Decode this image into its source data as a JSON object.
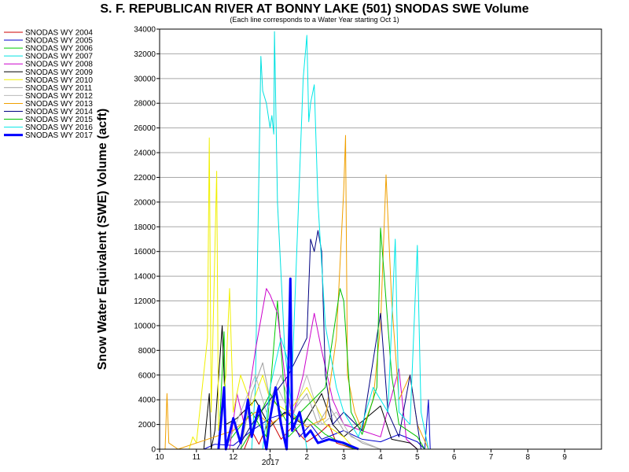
{
  "chart_data": {
    "type": "line",
    "title": "S. F. REPUBLICAN RIVER AT BONNY LAKE (501) SNODAS SWE Volume",
    "subtitle": "(Each line corresponds to a Water Year starting Oct 1)",
    "ylabel": "Snow Water Equivalent (SWE) Volume (acft)",
    "xlabel": "",
    "year_label": "2017",
    "ylim": [
      0,
      34000
    ],
    "yticks": [
      "0",
      "2000",
      "4000",
      "6000",
      "8000",
      "10000",
      "12000",
      "14000",
      "16000",
      "18000",
      "20000",
      "22000",
      "24000",
      "26000",
      "28000",
      "30000",
      "32000",
      "34000"
    ],
    "xlim": [
      0,
      12
    ],
    "xticks": [
      {
        "label": "10",
        "x": 0
      },
      {
        "label": "11",
        "x": 1
      },
      {
        "label": "12",
        "x": 2
      },
      {
        "label": "1",
        "x": 3
      },
      {
        "label": "2",
        "x": 4
      },
      {
        "label": "3",
        "x": 5
      },
      {
        "label": "4",
        "x": 6
      },
      {
        "label": "5",
        "x": 7
      },
      {
        "label": "6",
        "x": 8
      },
      {
        "label": "7",
        "x": 9
      },
      {
        "label": "8",
        "x": 10
      },
      {
        "label": "9",
        "x": 11
      }
    ],
    "grid": true,
    "legend_position": "left",
    "series": [
      {
        "name": "SNODAS WY 2004",
        "color": "#cc0000",
        "width": 1,
        "points": [
          [
            2.3,
            0
          ],
          [
            2.5,
            1500
          ],
          [
            2.7,
            400
          ],
          [
            3.0,
            2500
          ],
          [
            3.3,
            800
          ],
          [
            3.6,
            1800
          ],
          [
            4.0,
            600
          ],
          [
            4.3,
            1200
          ],
          [
            4.6,
            2000
          ],
          [
            4.8,
            500
          ],
          [
            5.0,
            300
          ],
          [
            5.3,
            0
          ]
        ]
      },
      {
        "name": "SNODAS WY 2005",
        "color": "#0000cc",
        "width": 1,
        "points": [
          [
            1.2,
            0
          ],
          [
            1.5,
            400
          ],
          [
            2.0,
            300
          ],
          [
            2.5,
            1500
          ],
          [
            3.0,
            2500
          ],
          [
            3.5,
            3000
          ],
          [
            3.8,
            1000
          ],
          [
            4.1,
            2000
          ],
          [
            4.4,
            800
          ],
          [
            5.0,
            1500
          ],
          [
            5.5,
            800
          ],
          [
            6.0,
            600
          ],
          [
            6.5,
            1200
          ],
          [
            7.0,
            600
          ],
          [
            7.2,
            0
          ],
          [
            7.3,
            4000
          ],
          [
            7.35,
            0
          ]
        ]
      },
      {
        "name": "SNODAS WY 2006",
        "color": "#00cc00",
        "width": 1,
        "points": [
          [
            1.6,
            0
          ],
          [
            1.75,
            9500
          ],
          [
            1.8,
            300
          ],
          [
            2.1,
            1500
          ],
          [
            2.5,
            3000
          ],
          [
            2.9,
            1000
          ],
          [
            3.2,
            12000
          ],
          [
            3.35,
            6000
          ],
          [
            3.5,
            1000
          ],
          [
            4.0,
            2500
          ],
          [
            4.5,
            1200
          ],
          [
            5.0,
            400
          ],
          [
            5.3,
            0
          ]
        ]
      },
      {
        "name": "SNODAS WY 2007",
        "color": "#00e0e0",
        "width": 1,
        "points": [
          [
            2.5,
            0
          ],
          [
            2.6,
            5000
          ],
          [
            2.75,
            31800
          ],
          [
            2.8,
            29000
          ],
          [
            2.9,
            28000
          ],
          [
            3.0,
            26000
          ],
          [
            3.05,
            27000
          ],
          [
            3.1,
            25500
          ],
          [
            3.12,
            33800
          ],
          [
            3.2,
            20000
          ],
          [
            3.4,
            8000
          ],
          [
            3.6,
            3000
          ],
          [
            3.9,
            2000
          ],
          [
            4.0,
            0
          ]
        ]
      },
      {
        "name": "SNODAS WY 2008",
        "color": "#cc00cc",
        "width": 1,
        "points": [
          [
            1.9,
            0
          ],
          [
            2.1,
            4500
          ],
          [
            2.3,
            2000
          ],
          [
            2.6,
            8000
          ],
          [
            2.9,
            13000
          ],
          [
            3.0,
            12500
          ],
          [
            3.2,
            11000
          ],
          [
            3.4,
            6000
          ],
          [
            3.6,
            2500
          ],
          [
            3.9,
            6000
          ],
          [
            4.2,
            11000
          ],
          [
            4.4,
            8000
          ],
          [
            4.7,
            4000
          ],
          [
            5.0,
            2000
          ],
          [
            6.0,
            1000
          ],
          [
            6.5,
            6500
          ],
          [
            6.7,
            800
          ],
          [
            7.0,
            0
          ]
        ]
      },
      {
        "name": "SNODAS WY 2009",
        "color": "#000000",
        "width": 1,
        "points": [
          [
            1.2,
            0
          ],
          [
            1.35,
            4500
          ],
          [
            1.4,
            0
          ],
          [
            1.5,
            1500
          ],
          [
            1.7,
            10000
          ],
          [
            1.8,
            2000
          ],
          [
            2.1,
            2500
          ],
          [
            2.6,
            4000
          ],
          [
            3.0,
            1800
          ],
          [
            3.4,
            3000
          ],
          [
            3.9,
            2000
          ],
          [
            4.4,
            4500
          ],
          [
            4.7,
            2000
          ],
          [
            5.0,
            1000
          ],
          [
            6.0,
            3500
          ],
          [
            6.3,
            800
          ],
          [
            6.8,
            500
          ],
          [
            7.0,
            0
          ]
        ]
      },
      {
        "name": "SNODAS WY 2010",
        "color": "#f0f000",
        "width": 1,
        "points": [
          [
            0.8,
            0
          ],
          [
            0.9,
            1000
          ],
          [
            1.0,
            500
          ],
          [
            1.3,
            9000
          ],
          [
            1.35,
            25200
          ],
          [
            1.4,
            3000
          ],
          [
            1.55,
            22500
          ],
          [
            1.6,
            1500
          ],
          [
            1.8,
            6000
          ],
          [
            1.9,
            13000
          ],
          [
            2.0,
            3000
          ],
          [
            2.2,
            6000
          ],
          [
            2.5,
            3500
          ],
          [
            2.8,
            6000
          ],
          [
            3.0,
            4000
          ],
          [
            3.5,
            3000
          ],
          [
            4.0,
            5000
          ],
          [
            4.5,
            2000
          ],
          [
            5.0,
            1000
          ],
          [
            5.3,
            0
          ]
        ]
      },
      {
        "name": "SNODAS WY 2011",
        "color": "#a0a0a0",
        "width": 1,
        "points": [
          [
            2.2,
            0
          ],
          [
            2.5,
            4500
          ],
          [
            2.8,
            7000
          ],
          [
            3.0,
            4000
          ],
          [
            3.3,
            6000
          ],
          [
            3.6,
            3000
          ],
          [
            4.0,
            4500
          ],
          [
            4.3,
            2000
          ],
          [
            4.6,
            3500
          ],
          [
            5.0,
            1500
          ],
          [
            5.5,
            500
          ],
          [
            6.0,
            0
          ]
        ]
      },
      {
        "name": "SNODAS WY 2012",
        "color": "#b8b8b8",
        "width": 1,
        "points": [
          [
            1.8,
            0
          ],
          [
            2.2,
            3000
          ],
          [
            2.6,
            6000
          ],
          [
            2.9,
            3000
          ],
          [
            3.2,
            5000
          ],
          [
            3.6,
            2500
          ],
          [
            4.0,
            6000
          ],
          [
            4.4,
            2000
          ],
          [
            4.8,
            3000
          ],
          [
            5.2,
            1000
          ],
          [
            5.6,
            500
          ],
          [
            6.0,
            0
          ]
        ]
      },
      {
        "name": "SNODAS WY 2013",
        "color": "#f0a000",
        "width": 1,
        "points": [
          [
            0.15,
            0
          ],
          [
            0.2,
            4500
          ],
          [
            0.25,
            500
          ],
          [
            0.5,
            0
          ],
          [
            2.0,
            1500
          ],
          [
            2.6,
            3000
          ],
          [
            3.0,
            2000
          ],
          [
            3.5,
            3000
          ],
          [
            4.0,
            1800
          ],
          [
            4.5,
            2500
          ],
          [
            4.8,
            9000
          ],
          [
            5.0,
            21000
          ],
          [
            5.05,
            25400
          ],
          [
            5.1,
            6000
          ],
          [
            5.3,
            3000
          ],
          [
            5.5,
            1500
          ],
          [
            5.8,
            4000
          ],
          [
            6.0,
            10000
          ],
          [
            6.15,
            22200
          ],
          [
            6.3,
            12000
          ],
          [
            6.5,
            4000
          ],
          [
            6.8,
            6000
          ],
          [
            7.0,
            2000
          ],
          [
            7.3,
            0
          ]
        ]
      },
      {
        "name": "SNODAS WY 2014",
        "color": "#000080",
        "width": 1,
        "points": [
          [
            2.1,
            0
          ],
          [
            2.5,
            2000
          ],
          [
            3.0,
            4000
          ],
          [
            3.5,
            6000
          ],
          [
            4.0,
            9000
          ],
          [
            4.1,
            17000
          ],
          [
            4.2,
            16000
          ],
          [
            4.3,
            17700
          ],
          [
            4.4,
            16000
          ],
          [
            4.5,
            6000
          ],
          [
            4.7,
            2000
          ],
          [
            5.0,
            3000
          ],
          [
            5.5,
            1500
          ],
          [
            6.0,
            11000
          ],
          [
            6.2,
            3000
          ],
          [
            6.5,
            1000
          ],
          [
            6.8,
            6000
          ],
          [
            7.0,
            2000
          ],
          [
            7.1,
            0
          ]
        ]
      },
      {
        "name": "SNODAS WY 2015",
        "color": "#00c000",
        "width": 1,
        "points": [
          [
            2.2,
            0
          ],
          [
            2.5,
            1500
          ],
          [
            3.0,
            4500
          ],
          [
            3.5,
            2000
          ],
          [
            4.0,
            3500
          ],
          [
            4.5,
            5000
          ],
          [
            4.9,
            13000
          ],
          [
            5.0,
            12000
          ],
          [
            5.2,
            3000
          ],
          [
            5.5,
            1200
          ],
          [
            5.9,
            5000
          ],
          [
            6.0,
            17900
          ],
          [
            6.1,
            14000
          ],
          [
            6.3,
            6000
          ],
          [
            6.5,
            2000
          ],
          [
            7.0,
            1000
          ],
          [
            7.2,
            0
          ]
        ]
      },
      {
        "name": "SNODAS WY 2016",
        "color": "#00e8e8",
        "width": 1,
        "points": [
          [
            2.8,
            0
          ],
          [
            3.0,
            5000
          ],
          [
            3.3,
            9000
          ],
          [
            3.6,
            6000
          ],
          [
            3.9,
            30000
          ],
          [
            4.0,
            33500
          ],
          [
            4.05,
            26500
          ],
          [
            4.1,
            28000
          ],
          [
            4.2,
            29500
          ],
          [
            4.3,
            20000
          ],
          [
            4.5,
            10000
          ],
          [
            4.8,
            5000
          ],
          [
            5.0,
            3000
          ],
          [
            5.4,
            1000
          ],
          [
            5.8,
            5000
          ],
          [
            6.2,
            3000
          ],
          [
            6.4,
            17000
          ],
          [
            6.5,
            3000
          ],
          [
            6.8,
            2000
          ],
          [
            7.0,
            16500
          ],
          [
            7.1,
            3000
          ],
          [
            7.3,
            0
          ]
        ]
      },
      {
        "name": "SNODAS WY 2017",
        "color": "#0000ff",
        "width": 3,
        "points": [
          [
            1.6,
            0
          ],
          [
            1.75,
            5000
          ],
          [
            1.8,
            0
          ],
          [
            2.0,
            2500
          ],
          [
            2.2,
            500
          ],
          [
            2.4,
            4000
          ],
          [
            2.5,
            1000
          ],
          [
            2.7,
            3500
          ],
          [
            2.8,
            1500
          ],
          [
            2.9,
            0
          ],
          [
            3.0,
            2500
          ],
          [
            3.15,
            5000
          ],
          [
            3.3,
            2000
          ],
          [
            3.45,
            0
          ],
          [
            3.55,
            13800
          ],
          [
            3.6,
            1500
          ],
          [
            3.8,
            3000
          ],
          [
            3.95,
            1000
          ],
          [
            4.1,
            1500
          ],
          [
            4.3,
            500
          ],
          [
            4.6,
            800
          ],
          [
            5.0,
            500
          ],
          [
            5.4,
            0
          ]
        ]
      }
    ]
  }
}
